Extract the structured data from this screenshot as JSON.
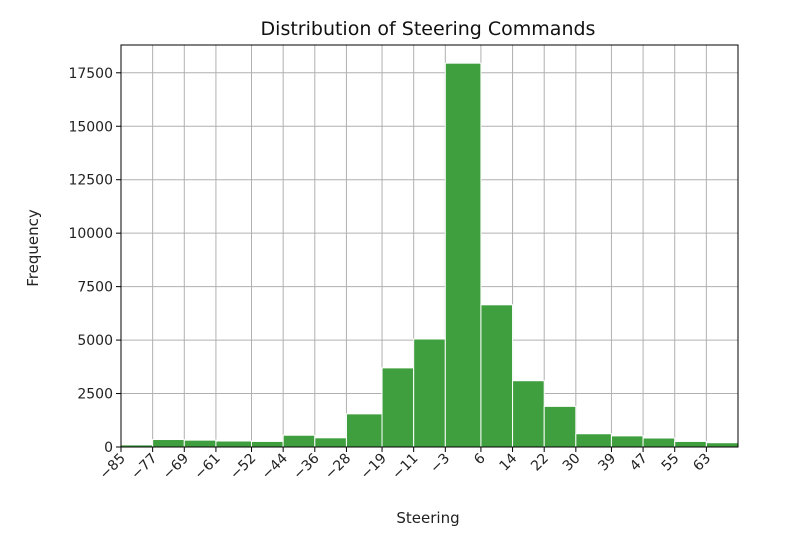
{
  "chart_data": {
    "type": "bar",
    "title": "Distribution of Steering Commands",
    "xlabel": "Steering",
    "ylabel": "Frequency",
    "xlim": [
      -85,
      71
    ],
    "ylim": [
      0,
      18800
    ],
    "grid": true,
    "bar_color": "#3f9f3f",
    "bar_edge_color": "#ffffff",
    "bin_edges": [
      -85,
      -77,
      -69,
      -61,
      -52,
      -44,
      -36,
      -28,
      -19,
      -11,
      -3,
      6,
      14,
      22,
      30,
      39,
      47,
      55,
      63,
      71
    ],
    "values": [
      100,
      350,
      320,
      280,
      260,
      550,
      430,
      1550,
      3700,
      5050,
      17950,
      6650,
      3100,
      1900,
      620,
      520,
      420,
      260,
      200
    ],
    "x_ticks": [
      -85,
      -77,
      -69,
      -61,
      -52,
      -44,
      -36,
      -28,
      -19,
      -11,
      -3,
      6,
      14,
      22,
      30,
      39,
      47,
      55,
      63
    ],
    "x_tick_labels": [
      "−85",
      "−77",
      "−69",
      "−61",
      "−52",
      "−44",
      "−36",
      "−28",
      "−19",
      "−11",
      "−3",
      "6",
      "14",
      "22",
      "30",
      "39",
      "47",
      "55",
      "63"
    ],
    "y_ticks": [
      0,
      2500,
      5000,
      7500,
      10000,
      12500,
      15000,
      17500
    ],
    "y_tick_labels": [
      "0",
      "2500",
      "5000",
      "7500",
      "10000",
      "12500",
      "15000",
      "17500"
    ]
  }
}
